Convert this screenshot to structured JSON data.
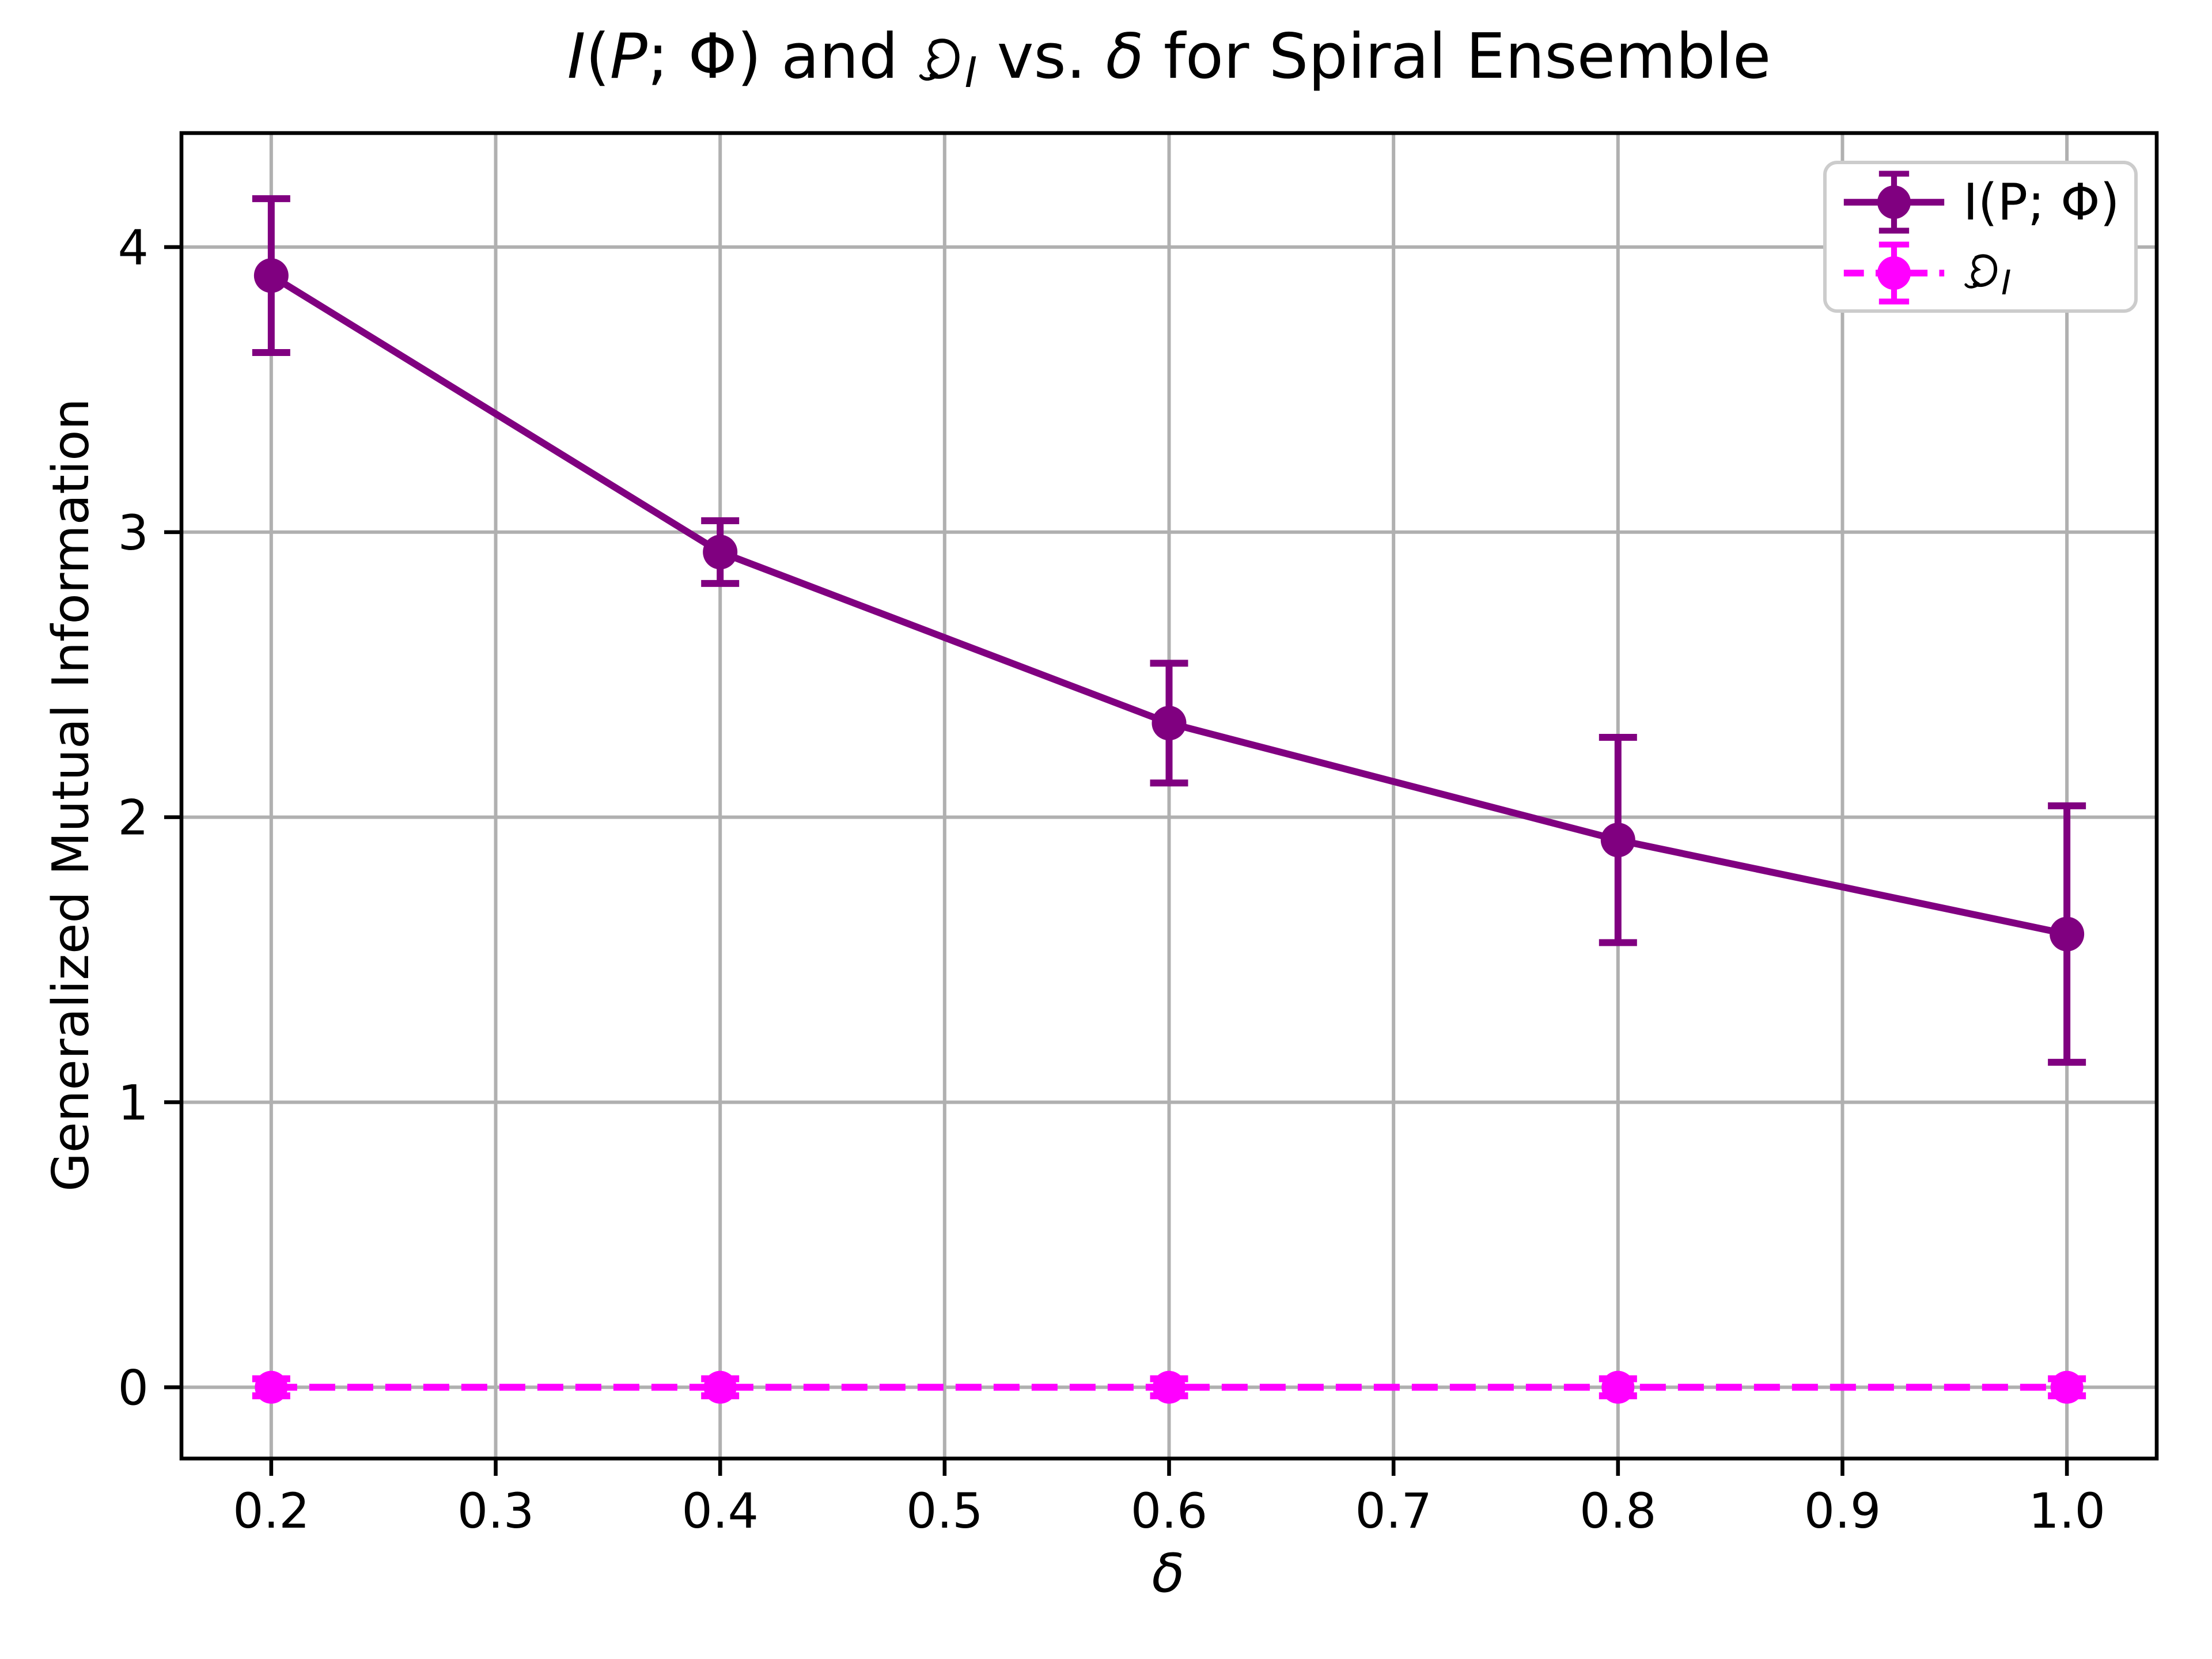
{
  "figure": {
    "xlabel": "δ",
    "ylabel": "Generalized Mutual Information",
    "title_parts": [
      {
        "t": "I",
        "s": "it"
      },
      {
        "t": "(",
        "s": "n"
      },
      {
        "t": "P",
        "s": "it"
      },
      {
        "t": "; ",
        "s": "n"
      },
      {
        "t": "Φ",
        "s": "n"
      },
      {
        "t": ")",
        "s": "n"
      },
      {
        "t": " and ",
        "s": "n"
      },
      {
        "t": "𝔇",
        "s": "frak"
      },
      {
        "t": "I",
        "s": "sub"
      },
      {
        "t": " vs. ",
        "s": "n"
      },
      {
        "t": "δ",
        "s": "it"
      },
      {
        "t": " for Spiral Ensemble",
        "s": "n"
      }
    ],
    "legend": [
      {
        "parts": [
          {
            "t": "I",
            "s": "it"
          },
          {
            "t": "(",
            "s": "n"
          },
          {
            "t": "P",
            "s": "it"
          },
          {
            "t": "; ",
            "s": "n"
          },
          {
            "t": "Φ",
            "s": "n"
          },
          {
            "t": ")",
            "s": "n"
          }
        ],
        "color": "#800080",
        "dashed": false
      },
      {
        "parts": [
          {
            "t": "𝔇",
            "s": "frak"
          },
          {
            "t": "I",
            "s": "sub"
          }
        ],
        "color": "#FF00FF",
        "dashed": true
      }
    ]
  },
  "colors": {
    "series_1": "#800080",
    "series_2": "#FF00FF",
    "grid": "#b0b0b0",
    "axis": "#000000",
    "legend_border": "#cccccc",
    "background": "#ffffff"
  },
  "chart_data": {
    "type": "line",
    "title": "I(P; Φ) and 𝔇_I vs. δ for Spiral Ensemble",
    "xlabel": "δ",
    "ylabel": "Generalized Mutual Information",
    "x": [
      0.2,
      0.4,
      0.6,
      0.8,
      1.0
    ],
    "series": [
      {
        "name": "I(P; Φ)",
        "color": "#800080",
        "linestyle": "solid",
        "markersize": 10,
        "values": [
          3.9,
          2.93,
          2.33,
          1.92,
          1.59
        ],
        "errors": [
          0.27,
          0.11,
          0.21,
          0.36,
          0.45
        ]
      },
      {
        "name": "𝔇_I",
        "color": "#FF00FF",
        "linestyle": "dashed",
        "markersize": 9.5,
        "values": [
          0.0,
          0.0,
          0.0,
          0.0,
          0.0
        ],
        "errors": [
          0.03,
          0.03,
          0.03,
          0.03,
          0.03
        ]
      }
    ],
    "xticks": [
      0.2,
      0.3,
      0.4,
      0.5,
      0.6,
      0.7,
      0.8,
      0.9,
      1.0
    ],
    "xtick_labels": [
      "0.2",
      "0.3",
      "0.4",
      "0.5",
      "0.6",
      "0.7",
      "0.8",
      "0.9",
      "1.0"
    ],
    "yticks": [
      0,
      1,
      2,
      3,
      4
    ],
    "ytick_labels": [
      "0",
      "1",
      "2",
      "3",
      "4"
    ],
    "xlim": [
      0.16,
      1.04
    ],
    "ylim": [
      -0.25,
      4.4
    ],
    "grid": true,
    "legend_position": "upper right"
  }
}
